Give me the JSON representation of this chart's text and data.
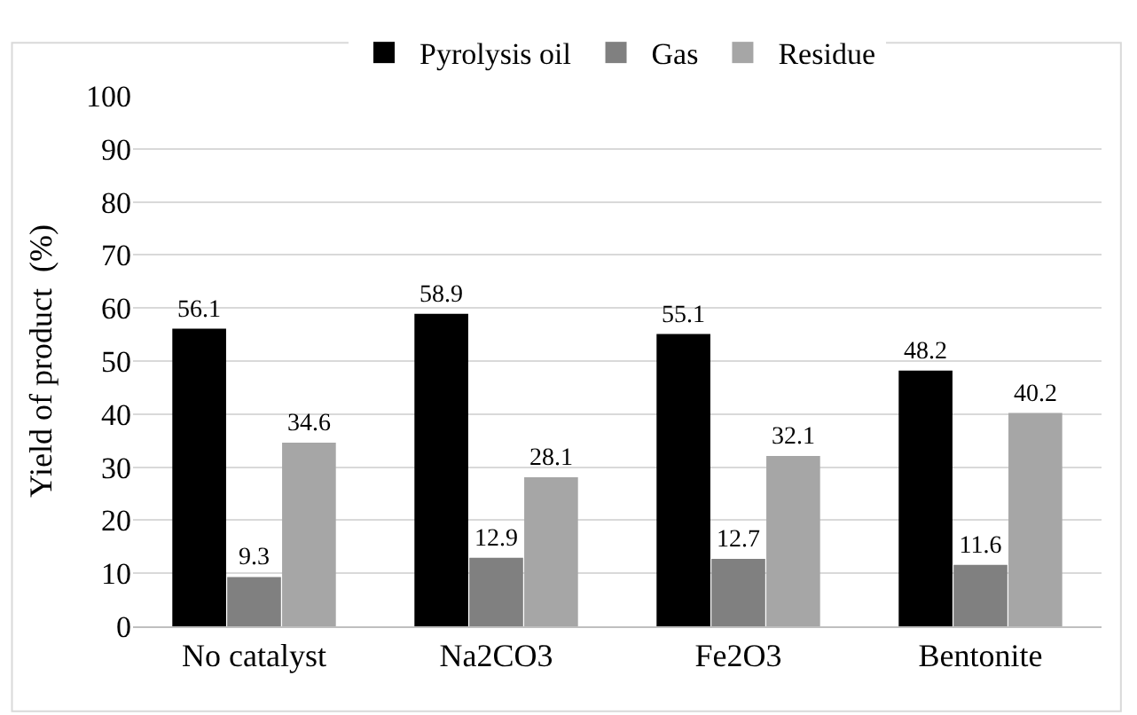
{
  "chart_data": {
    "type": "bar",
    "ylabel": "Yield of product  (%)",
    "categories": [
      "No catalyst",
      "Na2CO3",
      "Fe2O3",
      "Bentonite"
    ],
    "series": [
      {
        "name": "Pyrolysis oil",
        "color": "#000000",
        "values": [
          56.1,
          58.9,
          55.1,
          48.2
        ]
      },
      {
        "name": "Gas",
        "color": "#808080",
        "values": [
          9.3,
          12.9,
          12.7,
          11.6
        ]
      },
      {
        "name": "Residue",
        "color": "#a6a6a6",
        "values": [
          34.6,
          28.1,
          32.1,
          40.2
        ]
      }
    ],
    "ylim": [
      0,
      100
    ],
    "yticks": [
      0,
      10,
      20,
      30,
      40,
      50,
      60,
      70,
      80,
      90,
      100
    ],
    "grid": "y",
    "legend": "top",
    "data_labels": true
  }
}
